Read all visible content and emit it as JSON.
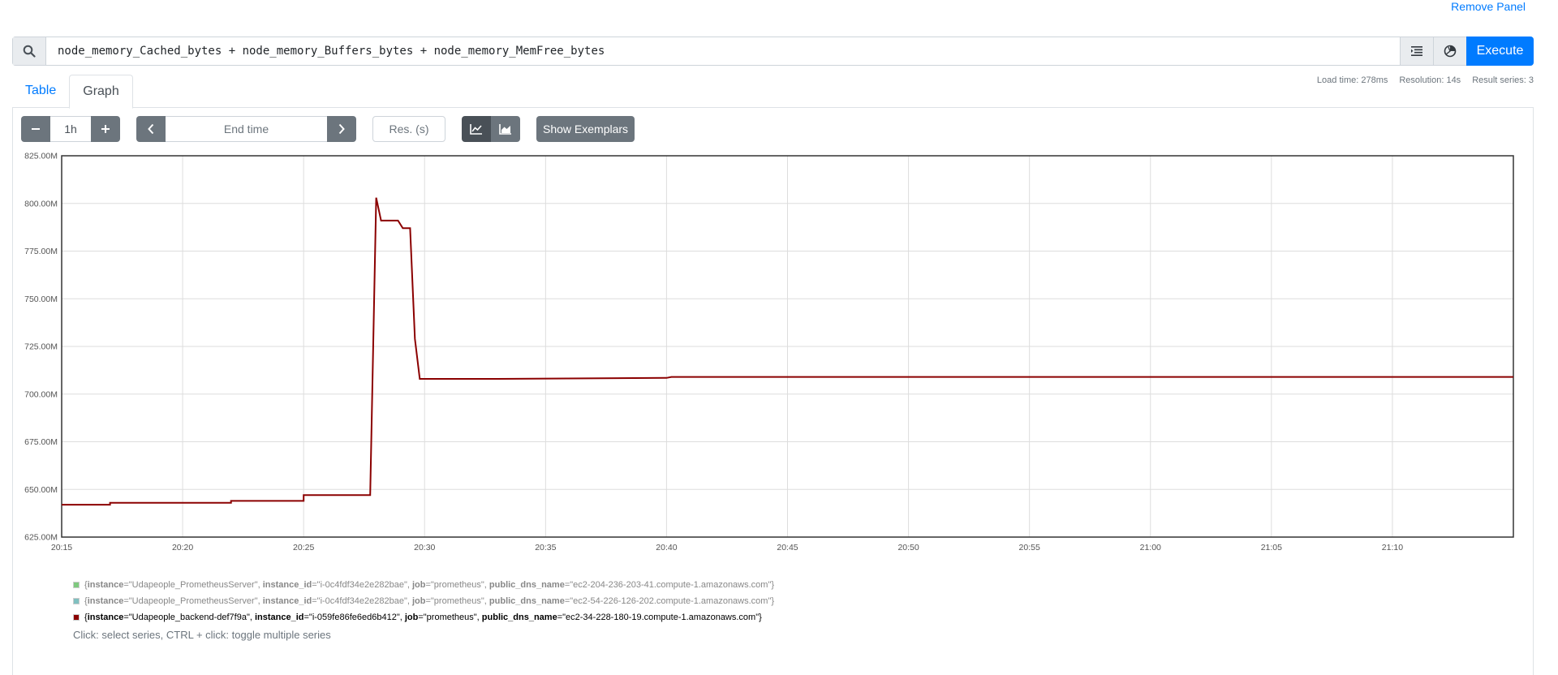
{
  "header": {
    "remove_panel": "Remove Panel"
  },
  "query": {
    "expression": "node_memory_Cached_bytes + node_memory_Buffers_bytes + node_memory_MemFree_bytes",
    "execute_label": "Execute"
  },
  "stats": {
    "load_time": "Load time: 278ms",
    "resolution": "Resolution: 14s",
    "result_series": "Result series: 3"
  },
  "tabs": [
    {
      "label": "Table"
    },
    {
      "label": "Graph"
    }
  ],
  "controls": {
    "range_value": "1h",
    "end_time_placeholder": "End time",
    "res_placeholder": "Res. (s)",
    "exemplars_label": "Show Exemplars"
  },
  "chart_data": {
    "type": "line",
    "ylim": [
      625000000,
      825000000
    ],
    "yticks": [
      "625.00M",
      "650.00M",
      "675.00M",
      "700.00M",
      "725.00M",
      "750.00M",
      "775.00M",
      "800.00M",
      "825.00M"
    ],
    "xticks": [
      "20:15",
      "20:20",
      "20:25",
      "20:30",
      "20:35",
      "20:40",
      "20:45",
      "20:50",
      "20:55",
      "21:00",
      "21:05",
      "21:10"
    ],
    "x_range": [
      "20:15",
      "21:15"
    ],
    "grid": true,
    "series": [
      {
        "color": "#8b0000",
        "points": [
          [
            "20:15",
            642000000
          ],
          [
            "20:17",
            642000000
          ],
          [
            "20:17",
            643000000
          ],
          [
            "20:22",
            643000000
          ],
          [
            "20:22",
            644000000
          ],
          [
            "20:25",
            644000000
          ],
          [
            "20:25",
            647000000
          ],
          [
            "20:27.75",
            647000000
          ],
          [
            "20:28",
            803000000
          ],
          [
            "20:28.2",
            791000000
          ],
          [
            "20:28.9",
            791000000
          ],
          [
            "20:29.1",
            787000000
          ],
          [
            "20:29.4",
            787000000
          ],
          [
            "20:29.6",
            729000000
          ],
          [
            "20:29.8",
            708000000
          ],
          [
            "20:33",
            708000000
          ],
          [
            "20:40",
            708500000
          ],
          [
            "20:40.2",
            709000000
          ],
          [
            "21:15",
            709000000
          ]
        ]
      }
    ]
  },
  "legend": {
    "items": [
      {
        "color": "#7fc97f",
        "instance": "Udapeople_PrometheusServer",
        "instance_id": "i-0c4fdf34e2e282bae",
        "job": "prometheus",
        "public_dns_name": "ec2-204-236-203-41.compute-1.amazonaws.com"
      },
      {
        "color": "#80c0c0",
        "instance": "Udapeople_PrometheusServer",
        "instance_id": "i-0c4fdf34e2e282bae",
        "job": "prometheus",
        "public_dns_name": "ec2-54-226-126-202.compute-1.amazonaws.com"
      },
      {
        "color": "#8b0000",
        "instance": "Udapeople_backend-def7f9a",
        "instance_id": "i-059fe86fe6ed6b412",
        "job": "prometheus",
        "public_dns_name": "ec2-34-228-180-19.compute-1.amazonaws.com"
      }
    ],
    "hint": "Click: select series, CTRL + click: toggle multiple series"
  }
}
